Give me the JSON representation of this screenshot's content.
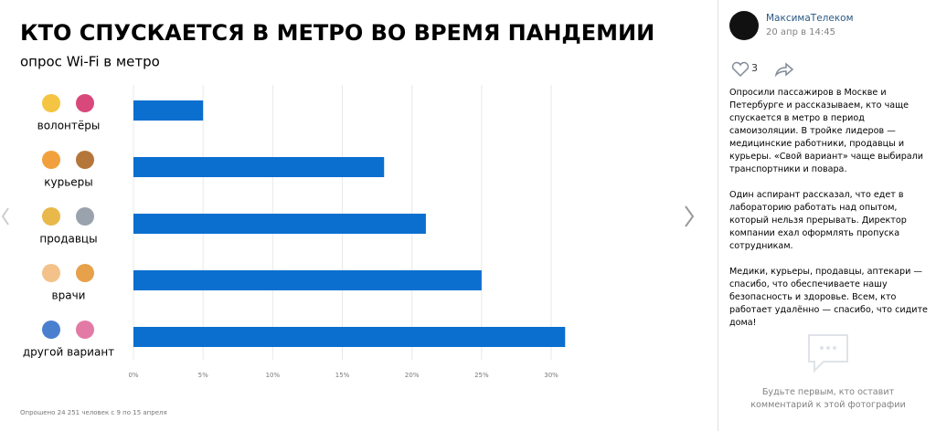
{
  "chart_data": {
    "type": "bar",
    "orientation": "horizontal",
    "title": "КТО СПУСКАЕТСЯ В МЕТРО ВО ВРЕМЯ ПАНДЕМИИ",
    "subtitle": "опрос Wi-Fi в метро",
    "categories": [
      "волонтёры",
      "курьеры",
      "продавцы",
      "врачи",
      "другой вариант"
    ],
    "values": [
      5,
      18,
      21,
      25,
      31
    ],
    "color": "#0b6fd0",
    "xlim": [
      0,
      32
    ],
    "xticks": [
      {
        "value": 0,
        "label": "0%"
      },
      {
        "value": 5,
        "label": "5%"
      },
      {
        "value": 10,
        "label": "10%"
      },
      {
        "value": 15,
        "label": "15%"
      },
      {
        "value": 20,
        "label": "20%"
      },
      {
        "value": 25,
        "label": "25%"
      },
      {
        "value": 30,
        "label": "30%"
      }
    ],
    "grid": true,
    "note": "Опрошено 24 251 человек с 9 по 15 апреля"
  },
  "post": {
    "author": "МаксимаТелеком",
    "date": "20 апр в 14:45",
    "likes": 3,
    "paragraphs": [
      "Опросили пассажиров в Москве и Петербурге и рассказываем, кто чаще спускается в метро в период самоизоляции. В тройке лидеров — медицинские работники, продавцы и курьеры. «Свой вариант» чаще выбирали транспортники и повара.",
      "Один аспирант рассказал, что едет в лабораторию работать над опытом, который нельзя прерывать. Директор компании ехал оформлять пропуска сотрудникам.",
      "Медики, курьеры, продавцы, аптекари — спасибо, что обеспечиваете нашу безопасность и здоровье. Всем, кто работает удалённо — спасибо, что сидите дома!"
    ],
    "comments_placeholder": "Будьте первым, кто оставит комментарий к этой фотографии"
  }
}
